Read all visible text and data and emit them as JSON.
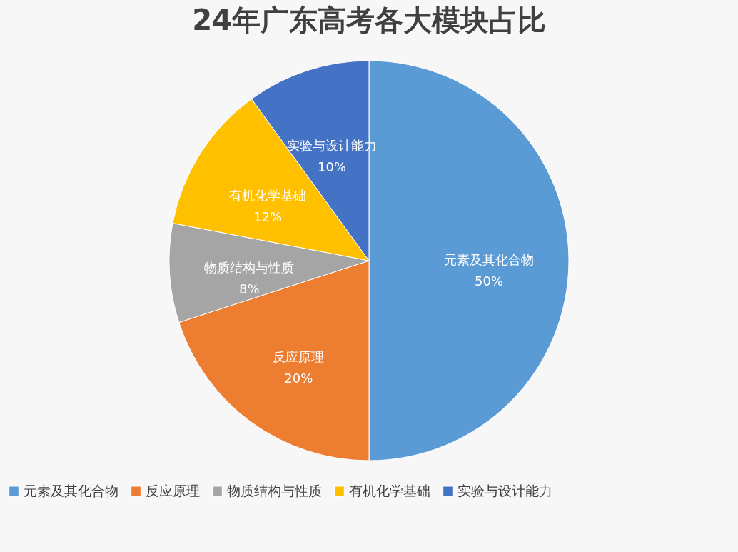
{
  "chart_data": {
    "type": "pie",
    "title": "24年广东高考各大模块占比",
    "categories": [
      "元素及其化合物",
      "反应原理",
      "物质结构与性质",
      "有机化学基础",
      "实验与设计能力"
    ],
    "values": [
      50,
      20,
      8,
      12,
      10
    ],
    "value_labels": [
      "50%",
      "20%",
      "8%",
      "12%",
      "10%"
    ],
    "colors": [
      "#5b9bd5",
      "#ed7d31",
      "#a5a5a5",
      "#ffc000",
      "#4472c4"
    ],
    "legend": "bottom"
  }
}
